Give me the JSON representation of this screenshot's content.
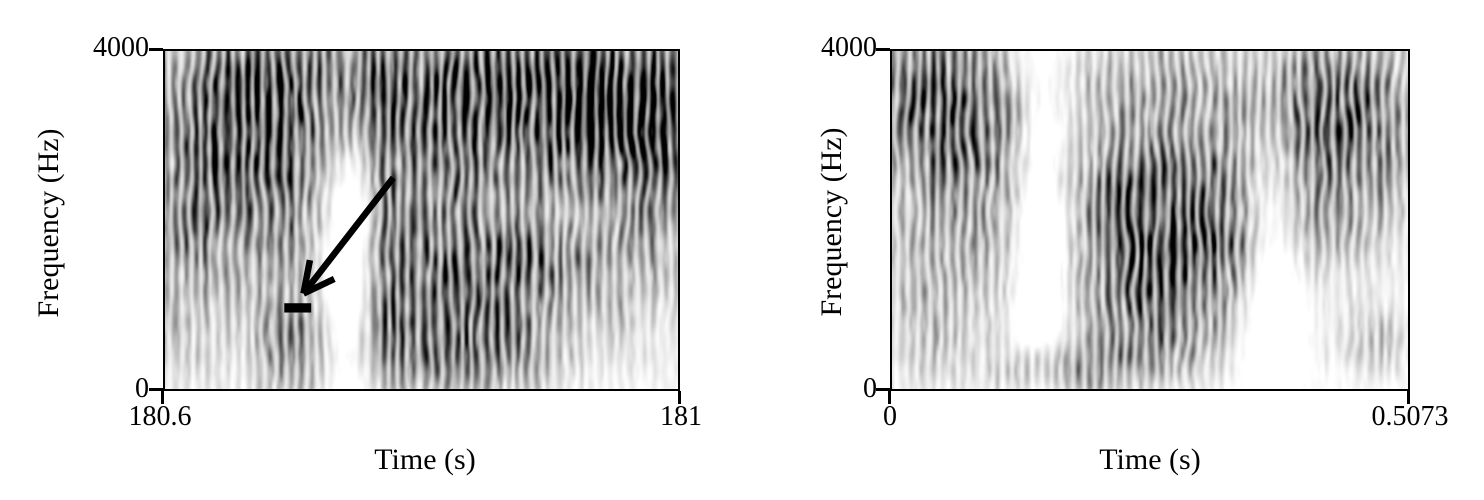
{
  "figure": {
    "background": "#ffffff",
    "text_color": "#000000",
    "annotation_color": "#000000"
  },
  "chart_data": [
    {
      "type": "heatmap",
      "subtype": "spectrogram",
      "panel": "left",
      "xlabel": "Time (s)",
      "ylabel": "Frequency (Hz)",
      "xlim": [
        180.6,
        181.0
      ],
      "ylim": [
        0,
        4000
      ],
      "xticks": [
        {
          "value": 180.6,
          "label": "180.6"
        },
        {
          "value": 181.0,
          "label": "181"
        }
      ],
      "yticks": [
        {
          "value": 4000,
          "label": "4000"
        },
        {
          "value": 0,
          "label": "0"
        }
      ],
      "colormap": "grayscale, dark = high energy",
      "grid": false,
      "striation_period_s": 0.0081,
      "energy_blobs": [
        {
          "t": 180.652,
          "f": 3400,
          "rt": 0.04,
          "rf": 880,
          "a": 1.05
        },
        {
          "t": 180.64,
          "f": 2200,
          "rt": 0.052,
          "rf": 720,
          "a": 0.55
        },
        {
          "t": 180.616,
          "f": 1000,
          "rt": 0.024,
          "rf": 800,
          "a": 0.3
        },
        {
          "t": 180.72,
          "f": 3600,
          "rt": 0.04,
          "rf": 480,
          "a": 0.5
        },
        {
          "t": 180.7,
          "f": 1800,
          "rt": 0.02,
          "rf": 1200,
          "a": 0.35
        },
        {
          "t": 180.698,
          "f": 520,
          "rt": 0.02,
          "rf": 420,
          "a": 0.55
        },
        {
          "t": 180.772,
          "f": 2800,
          "rt": 0.008,
          "rf": 1400,
          "a": 0.5
        },
        {
          "t": 180.82,
          "f": 3520,
          "rt": 0.048,
          "rf": 600,
          "a": 0.75
        },
        {
          "t": 180.808,
          "f": 2200,
          "rt": 0.04,
          "rf": 480,
          "a": 0.45
        },
        {
          "t": 180.84,
          "f": 1520,
          "rt": 0.048,
          "rf": 320,
          "a": 0.8
        },
        {
          "t": 180.834,
          "f": 800,
          "rt": 0.05,
          "rf": 360,
          "a": 0.9
        },
        {
          "t": 180.832,
          "f": 280,
          "rt": 0.05,
          "rf": 280,
          "a": 0.6
        },
        {
          "t": 180.892,
          "f": 3000,
          "rt": 0.06,
          "rf": 1000,
          "a": 0.5
        },
        {
          "t": 180.948,
          "f": 3400,
          "rt": 0.04,
          "rf": 600,
          "a": 0.85
        },
        {
          "t": 180.92,
          "f": 1520,
          "rt": 0.032,
          "rf": 400,
          "a": 0.5
        },
        {
          "t": 180.968,
          "f": 2200,
          "rt": 0.032,
          "rf": 1000,
          "a": 0.45
        },
        {
          "t": 180.992,
          "f": 3200,
          "rt": 0.02,
          "rf": 800,
          "a": 0.5
        },
        {
          "t": 180.776,
          "f": 1000,
          "rt": 0.016,
          "rf": 600,
          "a": 0.5
        },
        {
          "t": 180.888,
          "f": 3520,
          "rt": 0.112,
          "rf": 640,
          "a": 0.45
        },
        {
          "t": 180.744,
          "f": 1600,
          "rt": 0.02,
          "rf": 1200,
          "a": -0.5
        },
        {
          "t": 180.936,
          "f": 1800,
          "rt": 0.024,
          "rf": 480,
          "a": -0.35
        }
      ],
      "annotation": {
        "arrow": {
          "from": {
            "t": 180.778,
            "f": 2500
          },
          "to": {
            "t": 180.708,
            "f": 1130
          }
        },
        "bar": {
          "t0": 180.693,
          "t1": 180.714,
          "f": 960,
          "height_hz": 110
        }
      }
    },
    {
      "type": "heatmap",
      "subtype": "spectrogram",
      "panel": "right",
      "xlabel": "Time (s)",
      "ylabel": "Frequency (Hz)",
      "xlim": [
        0,
        0.5073
      ],
      "ylim": [
        0,
        4000
      ],
      "xticks": [
        {
          "value": 0,
          "label": "0"
        },
        {
          "value": 0.5073,
          "label": "0.5073"
        }
      ],
      "yticks": [
        {
          "value": 4000,
          "label": "4000"
        },
        {
          "value": 0,
          "label": "0"
        }
      ],
      "colormap": "grayscale, dark = high energy",
      "grid": false,
      "striation_period_s": 0.0102,
      "energy_blobs": [
        {
          "t": 0.03,
          "f": 3520,
          "rt": 0.041,
          "rf": 600,
          "a": 0.9
        },
        {
          "t": 0.081,
          "f": 3120,
          "rt": 0.041,
          "rf": 720,
          "a": 0.6
        },
        {
          "t": 0.041,
          "f": 2000,
          "rt": 0.041,
          "rf": 1000,
          "a": 0.35
        },
        {
          "t": 0.03,
          "f": 800,
          "rt": 0.025,
          "rf": 480,
          "a": 0.25
        },
        {
          "t": 0.101,
          "f": 1800,
          "rt": 0.025,
          "rf": 800,
          "a": 0.3
        },
        {
          "t": 0.254,
          "f": 3400,
          "rt": 0.066,
          "rf": 600,
          "a": 0.6
        },
        {
          "t": 0.243,
          "f": 2400,
          "rt": 0.051,
          "rf": 320,
          "a": 1.0
        },
        {
          "t": 0.264,
          "f": 1800,
          "rt": 0.056,
          "rf": 280,
          "a": 0.95
        },
        {
          "t": 0.254,
          "f": 1280,
          "rt": 0.056,
          "rf": 280,
          "a": 0.95
        },
        {
          "t": 0.249,
          "f": 720,
          "rt": 0.051,
          "rf": 280,
          "a": 0.7
        },
        {
          "t": 0.213,
          "f": 280,
          "rt": 0.066,
          "rf": 240,
          "a": 0.45
        },
        {
          "t": 0.152,
          "f": 200,
          "rt": 0.036,
          "rf": 200,
          "a": 0.3
        },
        {
          "t": 0.33,
          "f": 2200,
          "rt": 0.025,
          "rf": 800,
          "a": 0.5
        },
        {
          "t": 0.431,
          "f": 3400,
          "rt": 0.046,
          "rf": 600,
          "a": 0.9
        },
        {
          "t": 0.472,
          "f": 2800,
          "rt": 0.036,
          "rf": 800,
          "a": 0.5
        },
        {
          "t": 0.416,
          "f": 2200,
          "rt": 0.03,
          "rf": 600,
          "a": 0.4
        },
        {
          "t": 0.472,
          "f": 600,
          "rt": 0.025,
          "rf": 280,
          "a": 0.35
        },
        {
          "t": 0.147,
          "f": 2000,
          "rt": 0.023,
          "rf": 1600,
          "a": -0.5
        },
        {
          "t": 0.37,
          "f": 1600,
          "rt": 0.02,
          "rf": 1200,
          "a": -0.4
        }
      ],
      "annotation": null
    }
  ]
}
